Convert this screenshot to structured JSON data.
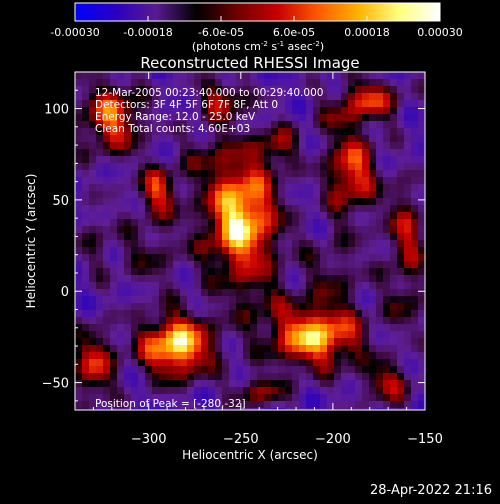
{
  "colorbar": {
    "tick_labels": [
      "-0.00030",
      "-0.00018",
      "-6.0e-05",
      "6.0e-05",
      "0.00018",
      "0.00030"
    ],
    "tick_values": [
      -0.0003,
      -0.00018,
      -6e-05,
      6e-05,
      0.00018,
      0.0003
    ],
    "range": [
      -0.0003,
      0.0003
    ],
    "unit_label": "(photons cm-2 s-1 asec-2)",
    "unit_parts": [
      "(photons cm",
      "-2",
      " s",
      "-1",
      " asec",
      "-2",
      ")"
    ],
    "stops": [
      "#0000ff",
      "#2a00c0",
      "#5a1a90",
      "#000000",
      "#700000",
      "#c80000",
      "#ff5a00",
      "#ffb400",
      "#ffff80",
      "#ffffff"
    ]
  },
  "chart_data": {
    "type": "heatmap",
    "title": "Reconstructed RHESSI Image",
    "xlabel": "Heliocentric X (arcsec)",
    "ylabel": "Heliocentric Y (arcsec)",
    "xlim": [
      -340,
      -150
    ],
    "ylim": [
      -65,
      120
    ],
    "x_ticks": [
      -300,
      -250,
      -200,
      -150
    ],
    "x_tick_labels": [
      "−300",
      "−250",
      "−200",
      "−150"
    ],
    "y_ticks": [
      -50,
      0,
      50,
      100
    ],
    "y_tick_labels": [
      "−50",
      "0",
      "50",
      "100"
    ],
    "peak": [
      -280,
      -32
    ],
    "bright_sources": [
      {
        "x": -250,
        "y": 40,
        "sx": 14,
        "sy": 24,
        "a": 1.0
      },
      {
        "x": -285,
        "y": -30,
        "sx": 14,
        "sy": 12,
        "a": 1.0
      },
      {
        "x": -210,
        "y": -25,
        "sx": 18,
        "sy": 12,
        "a": 0.9
      },
      {
        "x": -320,
        "y": 95,
        "sx": 12,
        "sy": 14,
        "a": 0.7
      },
      {
        "x": -295,
        "y": 55,
        "sx": 8,
        "sy": 10,
        "a": 0.6
      },
      {
        "x": -190,
        "y": 65,
        "sx": 10,
        "sy": 16,
        "a": 0.7
      },
      {
        "x": -180,
        "y": 105,
        "sx": 12,
        "sy": 8,
        "a": 0.6
      },
      {
        "x": -160,
        "y": 30,
        "sx": 8,
        "sy": 20,
        "a": 0.5
      },
      {
        "x": -330,
        "y": -40,
        "sx": 8,
        "sy": 14,
        "a": 0.6
      },
      {
        "x": -260,
        "y": 105,
        "sx": 10,
        "sy": 8,
        "a": 0.5
      },
      {
        "x": -230,
        "y": 80,
        "sx": 8,
        "sy": 8,
        "a": 0.4
      },
      {
        "x": -170,
        "y": -50,
        "sx": 10,
        "sy": 8,
        "a": 0.5
      },
      {
        "x": -240,
        "y": -55,
        "sx": 10,
        "sy": 6,
        "a": 0.45
      }
    ],
    "faint_sources": [
      {
        "x": -300,
        "y": 20,
        "sx": 14,
        "sy": 14,
        "a": 0.5
      },
      {
        "x": -200,
        "y": 10,
        "sx": 14,
        "sy": 16,
        "a": 0.5
      },
      {
        "x": -160,
        "y": -10,
        "sx": 8,
        "sy": 10,
        "a": 0.45
      },
      {
        "x": -270,
        "y": 75,
        "sx": 10,
        "sy": 10,
        "a": 0.4
      },
      {
        "x": -200,
        "y": 95,
        "sx": 10,
        "sy": 8,
        "a": 0.35
      },
      {
        "x": -240,
        "y": -5,
        "sx": 10,
        "sy": 10,
        "a": 0.35
      },
      {
        "x": -330,
        "y": 30,
        "sx": 8,
        "sy": 14,
        "a": 0.4
      }
    ],
    "grid": false
  },
  "annotations": {
    "time_range": "12-Mar-2005 00:23:40.000 to 00:29:40.000",
    "detectors": "Detectors: 3F 4F 5F 6F 7F 8F, Att 0",
    "energy_range": "Energy Range: 12.0 - 25.0 keV",
    "clean": "Clean    Total counts: 4.60E+03",
    "peak_position": "Position of Peak = [-280,-32]"
  },
  "footer": {
    "timestamp": "28-Apr-2022 21:16"
  }
}
